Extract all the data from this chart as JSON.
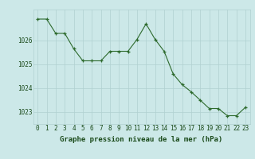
{
  "x": [
    0,
    1,
    2,
    3,
    4,
    5,
    6,
    7,
    8,
    9,
    10,
    11,
    12,
    13,
    14,
    15,
    16,
    17,
    18,
    19,
    20,
    21,
    22,
    23
  ],
  "y": [
    1026.9,
    1026.9,
    1026.3,
    1026.3,
    1025.65,
    1025.15,
    1025.15,
    1025.15,
    1025.55,
    1025.55,
    1025.55,
    1026.05,
    1026.7,
    1026.05,
    1025.55,
    1024.6,
    1024.15,
    1023.85,
    1023.5,
    1023.15,
    1023.15,
    1022.85,
    1022.85,
    1023.2
  ],
  "line_color": "#2d6a2d",
  "marker_color": "#2d6a2d",
  "bg_color": "#cce8e8",
  "grid_color": "#b0d0d0",
  "xlabel": "Graphe pression niveau de la mer (hPa)",
  "xlabel_color": "#1a4a1a",
  "tick_color": "#1a4a1a",
  "ylim": [
    1022.5,
    1027.3
  ],
  "yticks": [
    1023,
    1024,
    1025,
    1026
  ],
  "xticks": [
    0,
    1,
    2,
    3,
    4,
    5,
    6,
    7,
    8,
    9,
    10,
    11,
    12,
    13,
    14,
    15,
    16,
    17,
    18,
    19,
    20,
    21,
    22,
    23
  ],
  "xlabel_fontsize": 6.5,
  "tick_fontsize": 5.5
}
